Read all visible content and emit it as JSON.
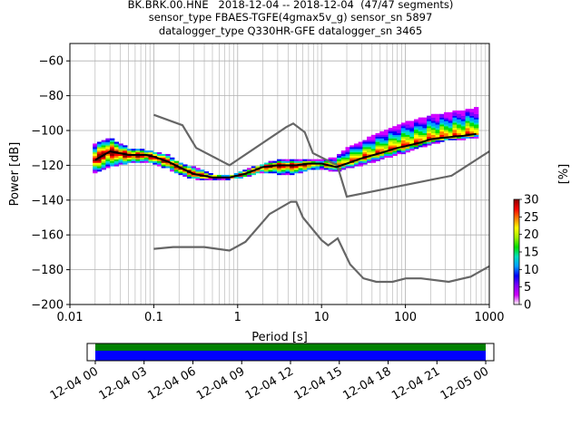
{
  "title_lines": [
    "BK.BRK.00.HNE   2018-12-04 -- 2018-12-04  (47/47 segments)",
    "sensor_type FBAES-TGFE(4gmax5v_g) sensor_sn 5897",
    "datalogger_type Q330HR-GFE datalogger_sn 3465"
  ],
  "chart_data": {
    "type": "heatmap",
    "subtype": "probabilistic power spectral density",
    "xlabel": "Period [s]",
    "ylabel": "Power [dB]",
    "x_scale": "log",
    "xlim": [
      0.01,
      1000
    ],
    "ylim": [
      -200,
      -50
    ],
    "x_tick_labels": [
      "0.01",
      "0.1",
      "1",
      "10",
      "100",
      "1000"
    ],
    "y_ticks": [
      -60,
      -80,
      -100,
      -120,
      -140,
      -160,
      -180,
      -200
    ],
    "grid": true,
    "colorbar": {
      "label": "[%]",
      "ticks": [
        0,
        5,
        10,
        15,
        20,
        25,
        30
      ],
      "range": [
        0,
        30
      ],
      "colormap": [
        "#ffffff",
        "#d100ff",
        "#8000ff",
        "#0000ff",
        "#00a0ff",
        "#00e0c0",
        "#00e000",
        "#a0f000",
        "#ffff00",
        "#ff8000",
        "#ff0000",
        "#8b0000"
      ]
    },
    "mode_curve": {
      "period": [
        0.02,
        0.03,
        0.05,
        0.08,
        0.1,
        0.15,
        0.2,
        0.3,
        0.5,
        0.8,
        1.2,
        2,
        3,
        5,
        7,
        10,
        15,
        20,
        30,
        50,
        80,
        100,
        150,
        200,
        300,
        500,
        700
      ],
      "power": [
        -117,
        -112,
        -114,
        -114,
        -115,
        -118,
        -121,
        -125,
        -127,
        -127,
        -125,
        -121,
        -120,
        -120,
        -119,
        -119,
        -121,
        -119,
        -116,
        -113,
        -110,
        -109,
        -107,
        -105,
        -104,
        -103,
        -102
      ]
    },
    "spread": {
      "period": [
        0.02,
        0.03,
        0.05,
        0.08,
        0.1,
        0.15,
        0.2,
        0.3,
        0.5,
        0.8,
        1.2,
        2,
        3,
        5,
        7,
        10,
        15,
        20,
        30,
        50,
        80,
        100,
        150,
        200,
        300,
        500,
        700
      ],
      "upper": [
        -108,
        -104,
        -110,
        -111,
        -112,
        -114,
        -118,
        -121,
        -125,
        -126,
        -123,
        -119,
        -117,
        -117,
        -117,
        -117,
        -115,
        -110,
        -106,
        -101,
        -97,
        -95,
        -93,
        -91,
        -90,
        -88,
        -87
      ],
      "lower": [
        -124,
        -121,
        -119,
        -118,
        -119,
        -122,
        -125,
        -128,
        -128,
        -128,
        -127,
        -124,
        -125,
        -125,
        -123,
        -122,
        -124,
        -122,
        -120,
        -117,
        -114,
        -113,
        -110,
        -108,
        -106,
        -105,
        -104
      ]
    },
    "noise_models": [
      {
        "period": [
          0.1,
          0.22,
          0.32,
          0.8,
          3.8,
          4.6,
          6.3,
          7.9,
          15.4,
          20,
          354.8,
          1000
        ],
        "power": [
          -91,
          -97,
          -110,
          -120,
          -98,
          -96,
          -101,
          -113,
          -120,
          -138,
          -126,
          -112
        ]
      },
      {
        "period": [
          0.1,
          0.17,
          0.4,
          0.8,
          1.24,
          2.4,
          4.3,
          5,
          6,
          10,
          12,
          15.6,
          21.9,
          31.6,
          45,
          70,
          101,
          154,
          328,
          600,
          1000
        ],
        "power": [
          -168,
          -167,
          -167,
          -169,
          -164,
          -148,
          -141,
          -141,
          -150,
          -163,
          -166,
          -162,
          -177,
          -185,
          -187,
          -187,
          -185,
          -185,
          -187,
          -184,
          -178
        ]
      }
    ],
    "time_axis": {
      "tick_labels": [
        "12-04 00",
        "12-04 03",
        "12-04 06",
        "12-04 09",
        "12-04 12",
        "12-04 15",
        "12-04 18",
        "12-04 21",
        "12-05 00"
      ],
      "range_hours": [
        -0.5,
        24.5
      ],
      "coverage_hours": [
        0,
        24
      ],
      "colors": [
        "#008000",
        "#0000ff"
      ]
    }
  }
}
